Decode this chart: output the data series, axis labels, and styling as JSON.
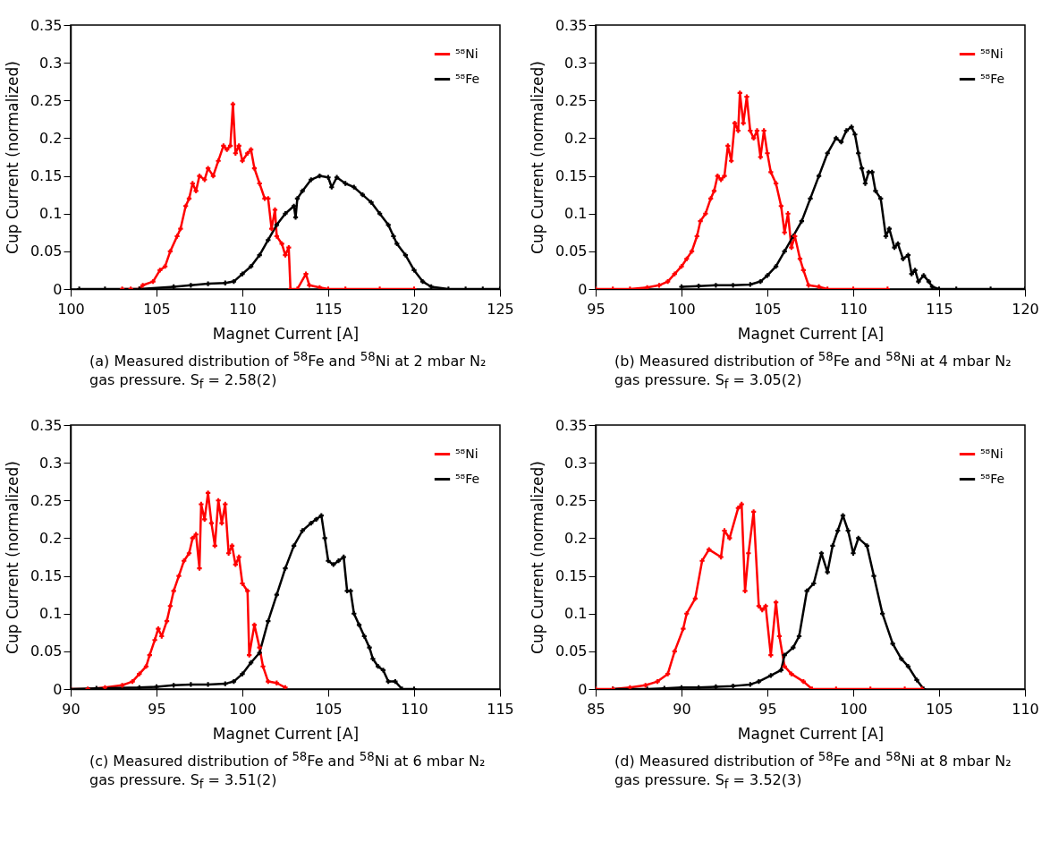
{
  "chart_data": [
    {
      "type": "line",
      "xlabel": "Magnet Current [A]",
      "ylabel": "Cup Current (normalized)",
      "xlim": [
        100,
        125
      ],
      "xticks": [
        100,
        105,
        110,
        115,
        120,
        125
      ],
      "ylim": [
        0,
        0.35
      ],
      "yticks": [
        0,
        0.05,
        0.1,
        0.15,
        0.2,
        0.25,
        0.3,
        0.35
      ],
      "grid": false,
      "legend": "top right",
      "marker": "cross",
      "line_style": "solid",
      "annotations": [
        "(a) Measured distribution of $^{58}$Fe and $^{58}$Ni at 2 mbar N₂ gas pressure. S$_{f}$ = 2.58(2)"
      ],
      "series": [
        {
          "name": "⁵⁸Ni",
          "color": "#ff0000",
          "x": [
            103,
            103.5,
            104,
            104.2,
            104.8,
            105.2,
            105.5,
            105.8,
            106.2,
            106.4,
            106.7,
            106.9,
            107.1,
            107.3,
            107.5,
            107.8,
            108,
            108.3,
            108.6,
            108.9,
            109.1,
            109.3,
            109.45,
            109.6,
            109.8,
            110,
            110.3,
            110.5,
            110.7,
            111,
            111.3,
            111.5,
            111.7,
            111.9,
            112,
            112.3,
            112.5,
            112.7,
            112.8,
            113.2,
            113.7,
            113.9,
            114.5,
            115,
            116,
            118,
            120
          ],
          "values": [
            0,
            0,
            0,
            0.005,
            0.01,
            0.025,
            0.03,
            0.05,
            0.07,
            0.08,
            0.11,
            0.12,
            0.14,
            0.13,
            0.15,
            0.145,
            0.16,
            0.15,
            0.17,
            0.19,
            0.185,
            0.19,
            0.245,
            0.18,
            0.19,
            0.17,
            0.18,
            0.185,
            0.16,
            0.14,
            0.12,
            0.12,
            0.08,
            0.105,
            0.07,
            0.06,
            0.045,
            0.055,
            0,
            0,
            0.02,
            0.005,
            0.002,
            0,
            0,
            0,
            0
          ]
        },
        {
          "name": "⁵⁸Fe",
          "color": "#000000",
          "x": [
            100.5,
            102,
            104,
            106,
            107,
            108,
            109,
            109.5,
            110,
            110.5,
            111,
            111.5,
            112,
            112.5,
            113,
            113.1,
            113.2,
            113.5,
            114,
            114.5,
            115,
            115.2,
            115.5,
            116,
            116.5,
            117,
            117.5,
            118,
            118.5,
            118.8,
            119,
            119.5,
            120,
            120.5,
            121,
            122,
            123,
            124,
            125
          ],
          "values": [
            0,
            0,
            0,
            0.003,
            0.005,
            0.007,
            0.008,
            0.01,
            0.02,
            0.03,
            0.045,
            0.065,
            0.085,
            0.1,
            0.11,
            0.095,
            0.12,
            0.13,
            0.145,
            0.15,
            0.148,
            0.135,
            0.148,
            0.14,
            0.135,
            0.125,
            0.115,
            0.1,
            0.085,
            0.07,
            0.06,
            0.045,
            0.025,
            0.01,
            0.003,
            0,
            0,
            0,
            0
          ]
        }
      ]
    },
    {
      "type": "line",
      "xlabel": "Magnet Current [A]",
      "ylabel": "Cup Current (normalized)",
      "xlim": [
        95,
        120
      ],
      "xticks": [
        95,
        100,
        105,
        110,
        115,
        120
      ],
      "ylim": [
        0,
        0.35
      ],
      "yticks": [
        0,
        0.05,
        0.1,
        0.15,
        0.2,
        0.25,
        0.3,
        0.35
      ],
      "grid": false,
      "legend": "top right",
      "marker": "cross",
      "line_style": "solid",
      "annotations": [
        "(b) Measured distribution of $^{58}$Fe and $^{58}$Ni at 4 mbar N₂ gas pressure. S$_{f}$ = 3.05(2)"
      ],
      "series": [
        {
          "name": "⁵⁸Ni",
          "color": "#ff0000",
          "x": [
            95,
            96,
            97,
            98,
            98.7,
            99.2,
            99.6,
            100,
            100.3,
            100.6,
            100.9,
            101.1,
            101.4,
            101.7,
            101.9,
            102.1,
            102.3,
            102.5,
            102.7,
            102.9,
            103.1,
            103.3,
            103.4,
            103.6,
            103.8,
            104,
            104.2,
            104.4,
            104.6,
            104.8,
            105,
            105.2,
            105.5,
            105.8,
            106,
            106.2,
            106.4,
            106.6,
            106.9,
            107.1,
            107.4,
            108,
            108.5,
            110,
            112
          ],
          "values": [
            0,
            0,
            0,
            0.002,
            0.005,
            0.01,
            0.02,
            0.03,
            0.04,
            0.05,
            0.07,
            0.09,
            0.1,
            0.12,
            0.13,
            0.15,
            0.145,
            0.15,
            0.19,
            0.17,
            0.22,
            0.21,
            0.26,
            0.22,
            0.255,
            0.21,
            0.2,
            0.21,
            0.175,
            0.21,
            0.18,
            0.155,
            0.14,
            0.11,
            0.075,
            0.1,
            0.055,
            0.07,
            0.04,
            0.025,
            0.005,
            0.003,
            0,
            0,
            0
          ]
        },
        {
          "name": "⁵⁸Fe",
          "color": "#000000",
          "x": [
            100,
            101,
            102,
            103,
            104,
            104.6,
            105,
            105.5,
            106,
            106.5,
            107,
            107.5,
            108,
            108.5,
            109,
            109.3,
            109.6,
            109.9,
            110.1,
            110.3,
            110.5,
            110.7,
            110.9,
            111.1,
            111.3,
            111.6,
            111.9,
            112.1,
            112.4,
            112.6,
            112.9,
            113.2,
            113.4,
            113.6,
            113.8,
            114.1,
            114.4,
            114.6,
            115,
            116,
            118,
            120
          ],
          "values": [
            0.003,
            0.004,
            0.005,
            0.005,
            0.006,
            0.01,
            0.018,
            0.03,
            0.05,
            0.07,
            0.09,
            0.12,
            0.15,
            0.18,
            0.2,
            0.195,
            0.21,
            0.215,
            0.205,
            0.18,
            0.16,
            0.14,
            0.155,
            0.155,
            0.13,
            0.12,
            0.07,
            0.08,
            0.055,
            0.06,
            0.04,
            0.045,
            0.02,
            0.025,
            0.01,
            0.018,
            0.01,
            0.003,
            0,
            0,
            0,
            0
          ]
        }
      ]
    },
    {
      "type": "line",
      "xlabel": "Magnet Current [A]",
      "ylabel": "Cup Current (normalized)",
      "xlim": [
        90,
        115
      ],
      "xticks": [
        90,
        95,
        100,
        105,
        110,
        115
      ],
      "ylim": [
        0,
        0.35
      ],
      "yticks": [
        0,
        0.05,
        0.1,
        0.15,
        0.2,
        0.25,
        0.3,
        0.35
      ],
      "grid": false,
      "legend": "top right",
      "marker": "cross",
      "line_style": "solid",
      "annotations": [
        "(c) Measured distribution of $^{58}$Fe and $^{58}$Ni at 6 mbar N₂ gas pressure. S$_{f}$ = 3.51(2)"
      ],
      "series": [
        {
          "name": "⁵⁸Ni",
          "color": "#ff0000",
          "x": [
            90,
            91,
            92,
            93,
            93.6,
            94,
            94.4,
            94.6,
            94.9,
            95.1,
            95.3,
            95.6,
            95.8,
            96,
            96.3,
            96.6,
            96.9,
            97.1,
            97.3,
            97.5,
            97.6,
            97.8,
            98,
            98.2,
            98.4,
            98.6,
            98.8,
            99,
            99.2,
            99.4,
            99.6,
            99.8,
            100,
            100.3,
            100.4,
            100.7,
            101,
            101.2,
            101.5,
            102,
            102.5
          ],
          "values": [
            0,
            0,
            0.002,
            0.005,
            0.01,
            0.02,
            0.03,
            0.045,
            0.065,
            0.08,
            0.07,
            0.09,
            0.11,
            0.13,
            0.15,
            0.17,
            0.18,
            0.2,
            0.205,
            0.16,
            0.245,
            0.225,
            0.26,
            0.22,
            0.19,
            0.25,
            0.22,
            0.245,
            0.18,
            0.19,
            0.165,
            0.175,
            0.14,
            0.13,
            0.045,
            0.085,
            0.055,
            0.03,
            0.01,
            0.008,
            0.002
          ]
        },
        {
          "name": "⁵⁸Fe",
          "color": "#000000",
          "x": [
            90,
            91.5,
            94,
            95,
            96,
            97,
            98,
            99,
            99.5,
            100,
            100.5,
            101,
            101.5,
            102,
            102.5,
            103,
            103.5,
            104,
            104.3,
            104.6,
            104.8,
            105,
            105.3,
            105.6,
            105.9,
            106.1,
            106.3,
            106.5,
            106.8,
            107.1,
            107.4,
            107.6,
            107.9,
            108.2,
            108.5,
            108.9,
            109.3,
            110
          ],
          "values": [
            0,
            0.001,
            0.002,
            0.003,
            0.005,
            0.006,
            0.006,
            0.007,
            0.01,
            0.02,
            0.035,
            0.048,
            0.09,
            0.125,
            0.16,
            0.19,
            0.21,
            0.22,
            0.225,
            0.23,
            0.2,
            0.17,
            0.165,
            0.17,
            0.175,
            0.13,
            0.13,
            0.1,
            0.085,
            0.07,
            0.055,
            0.04,
            0.03,
            0.025,
            0.01,
            0.01,
            0,
            0
          ]
        }
      ]
    },
    {
      "type": "line",
      "xlabel": "Magnet Current [A]",
      "ylabel": "Cup Current (normalized)",
      "xlim": [
        85,
        110
      ],
      "xticks": [
        85,
        90,
        95,
        100,
        105,
        110
      ],
      "ylim": [
        0,
        0.35
      ],
      "yticks": [
        0,
        0.05,
        0.1,
        0.15,
        0.2,
        0.25,
        0.3,
        0.35
      ],
      "grid": false,
      "legend": "top right",
      "marker": "cross",
      "line_style": "solid",
      "annotations": [
        "(d) Measured distribution of $^{58}$Fe and $^{58}$Ni at 8 mbar N₂ gas pressure. S$_{f}$ = 3.52(3)"
      ],
      "series": [
        {
          "name": "⁵⁸Ni",
          "color": "#ff0000",
          "x": [
            85,
            86,
            87,
            87.9,
            88.6,
            89.2,
            89.6,
            90.1,
            90.3,
            90.8,
            91.2,
            91.6,
            92.3,
            92.5,
            92.8,
            93.3,
            93.5,
            93.7,
            93.9,
            94.2,
            94.5,
            94.7,
            94.9,
            95.2,
            95.5,
            95.7,
            96,
            96.4,
            97.1,
            97.6,
            99,
            101,
            103,
            104
          ],
          "values": [
            0,
            0,
            0.002,
            0.005,
            0.01,
            0.02,
            0.05,
            0.08,
            0.1,
            0.12,
            0.17,
            0.185,
            0.175,
            0.21,
            0.2,
            0.24,
            0.245,
            0.13,
            0.18,
            0.235,
            0.11,
            0.105,
            0.11,
            0.045,
            0.115,
            0.07,
            0.03,
            0.02,
            0.01,
            0,
            0,
            0,
            0,
            0
          ]
        },
        {
          "name": "⁵⁸Fe",
          "color": "#000000",
          "x": [
            86,
            88,
            89,
            90,
            91,
            92,
            93,
            94,
            94.5,
            95.2,
            95.8,
            96,
            96.5,
            96.85,
            97.3,
            97.7,
            98.15,
            98.5,
            98.8,
            99.1,
            99.4,
            99.7,
            100,
            100.3,
            100.8,
            101.2,
            101.7,
            102.3,
            102.8,
            103.2,
            103.7,
            104.1
          ],
          "values": [
            0,
            0,
            0.001,
            0.002,
            0.002,
            0.003,
            0.004,
            0.006,
            0.01,
            0.018,
            0.025,
            0.045,
            0.055,
            0.07,
            0.13,
            0.14,
            0.18,
            0.155,
            0.19,
            0.21,
            0.23,
            0.21,
            0.18,
            0.2,
            0.19,
            0.15,
            0.1,
            0.06,
            0.04,
            0.03,
            0.012,
            0
          ]
        }
      ]
    }
  ]
}
